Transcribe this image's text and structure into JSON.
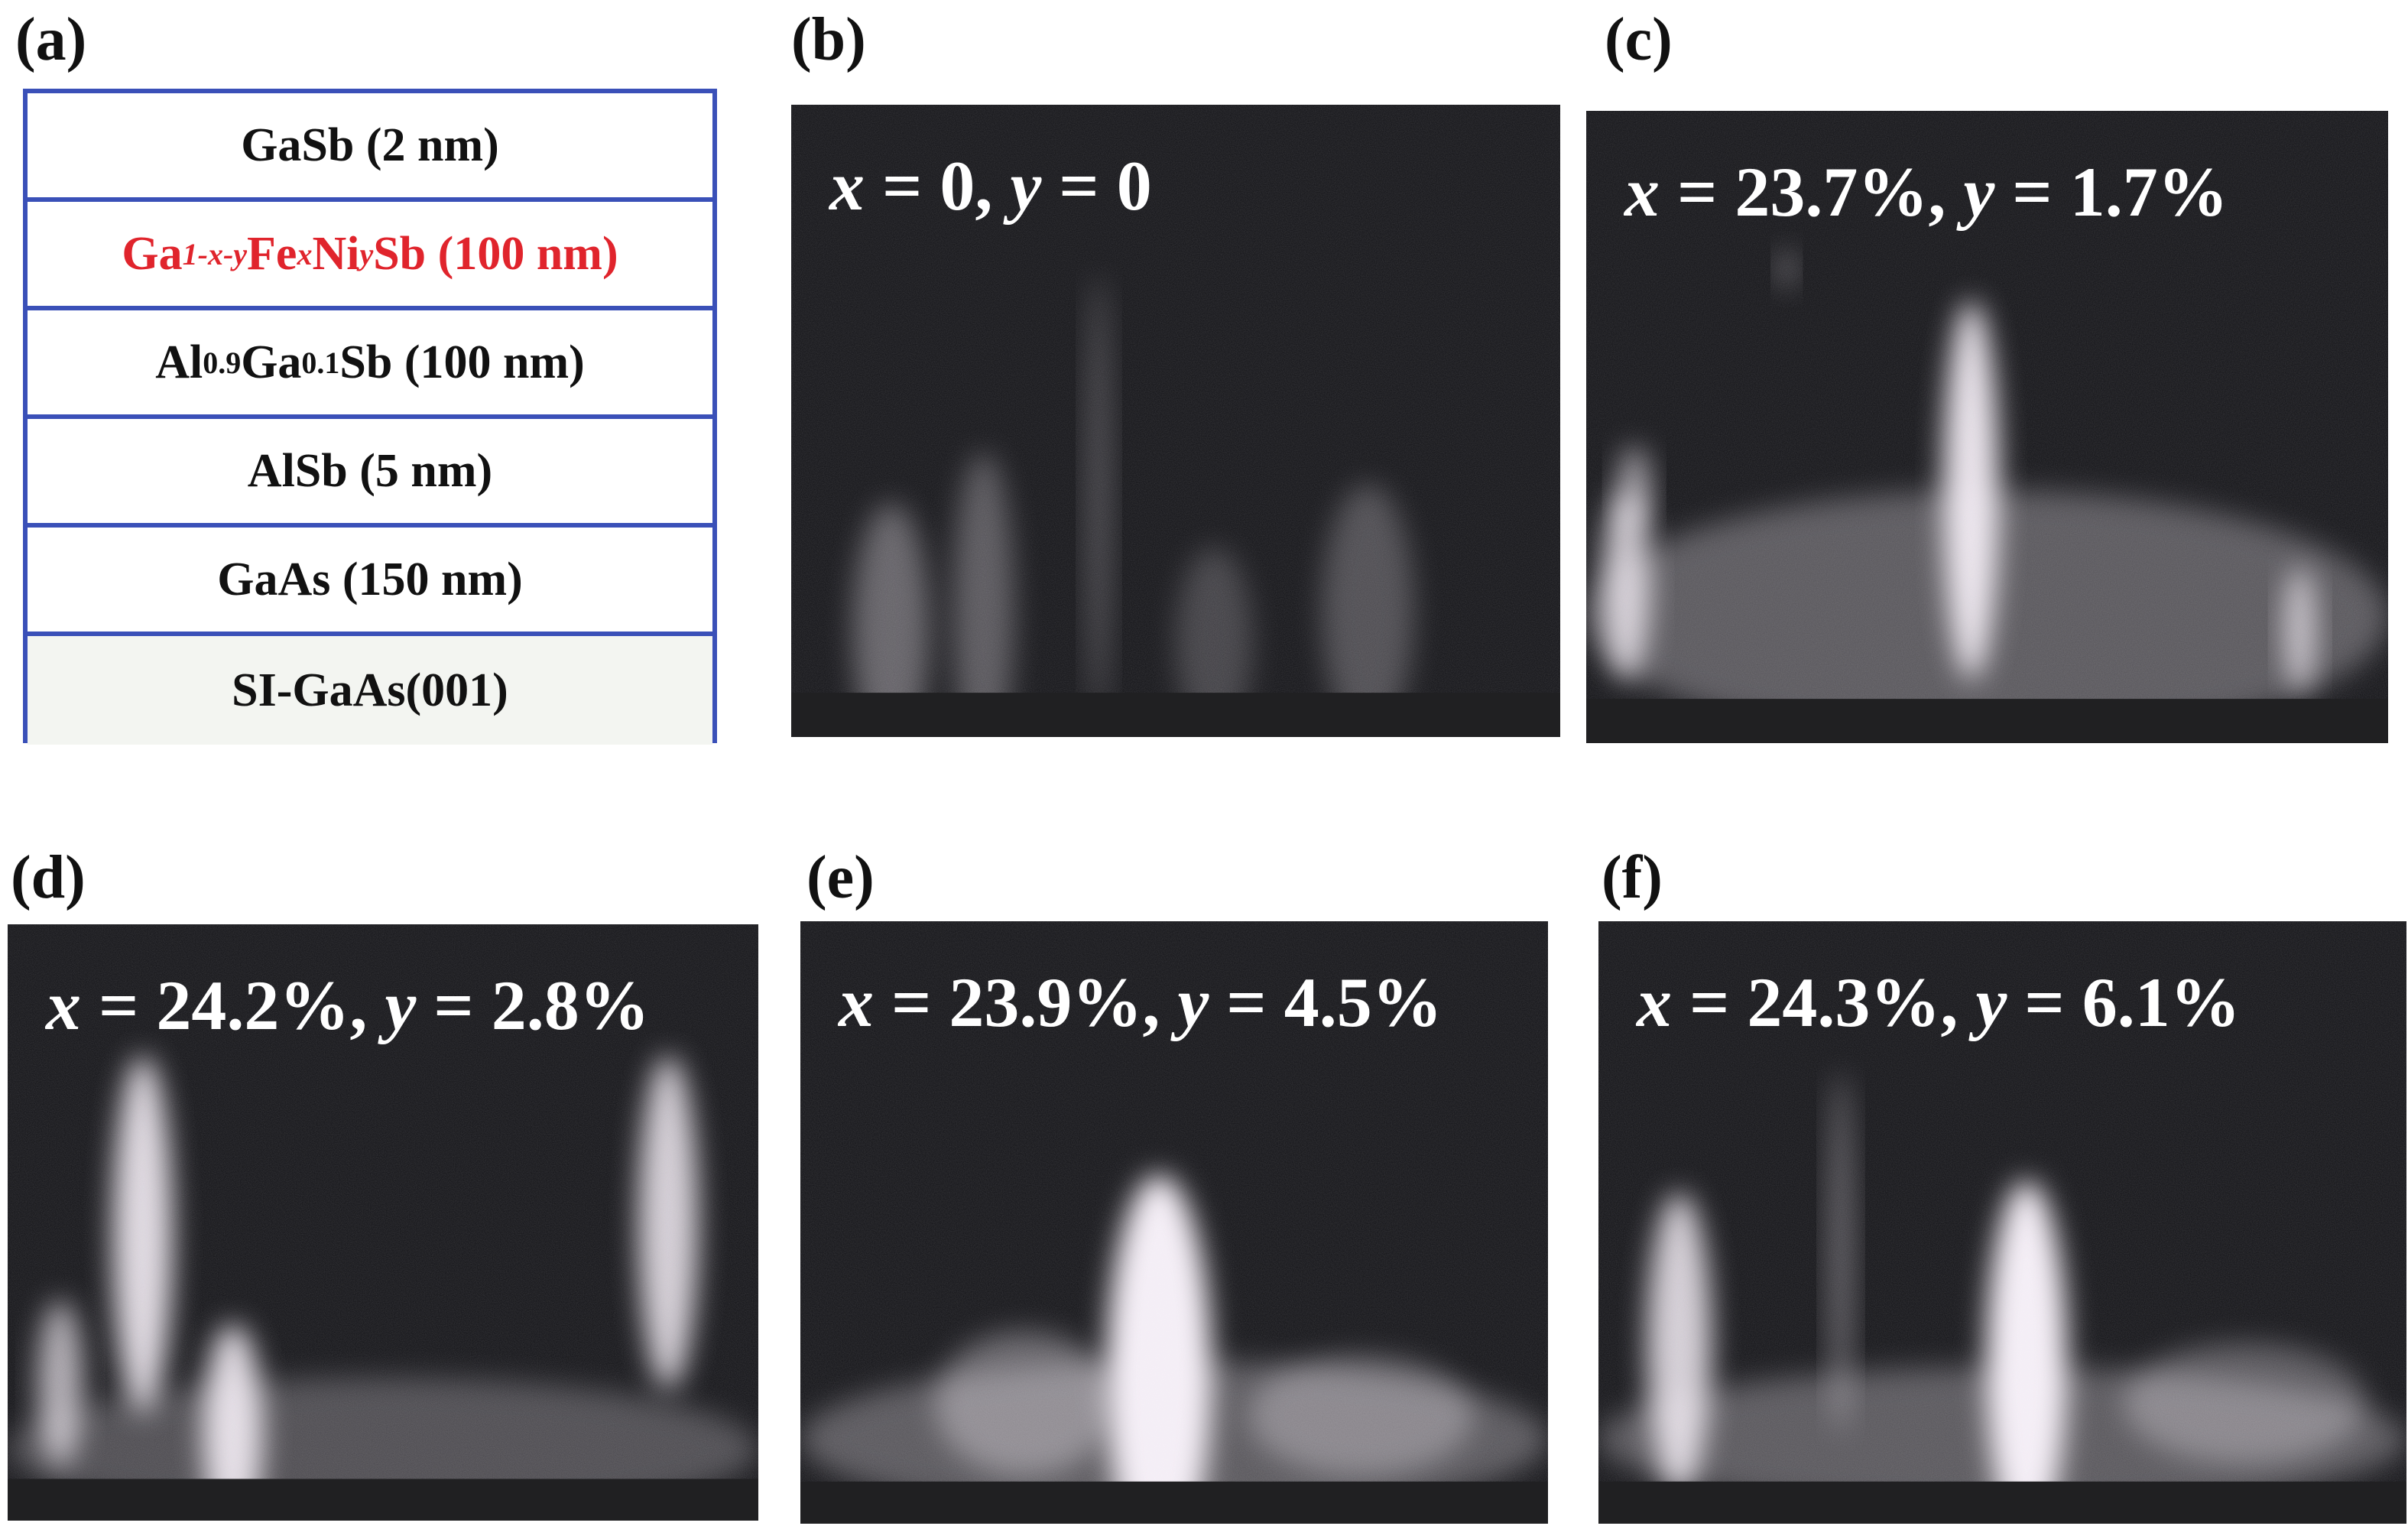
{
  "panel_a": {
    "label": "(a)",
    "layers": [
      [
        "GaSb (2 nm)"
      ],
      [
        "Ga",
        "1-x-y",
        "Fe",
        "x",
        "Ni",
        "y",
        "Sb (100 nm)"
      ],
      [
        "Al",
        "0.9",
        "Ga",
        "0.1",
        "Sb (100 nm)"
      ],
      [
        "AlSb (5 nm)"
      ],
      [
        "GaAs (150 nm)"
      ],
      [
        "SI-GaAs(001)"
      ]
    ]
  },
  "images": [
    {
      "label": "(b)",
      "caption": [
        "x",
        " = 0, ",
        "y",
        " = 0"
      ]
    },
    {
      "label": "(c)",
      "caption": [
        "x",
        " = 23.7%, ",
        "y",
        " = 1.7%"
      ]
    },
    {
      "label": "(d)",
      "caption": [
        "x",
        " = 24.2%, ",
        "y",
        " = 2.8%"
      ]
    },
    {
      "label": "(e)",
      "caption": [
        "x",
        " = 23.9%, ",
        "y",
        " = 4.5%"
      ]
    },
    {
      "label": "(f)",
      "caption": [
        "x",
        " = 24.3%, ",
        "y",
        " = 6.1%"
      ]
    }
  ]
}
